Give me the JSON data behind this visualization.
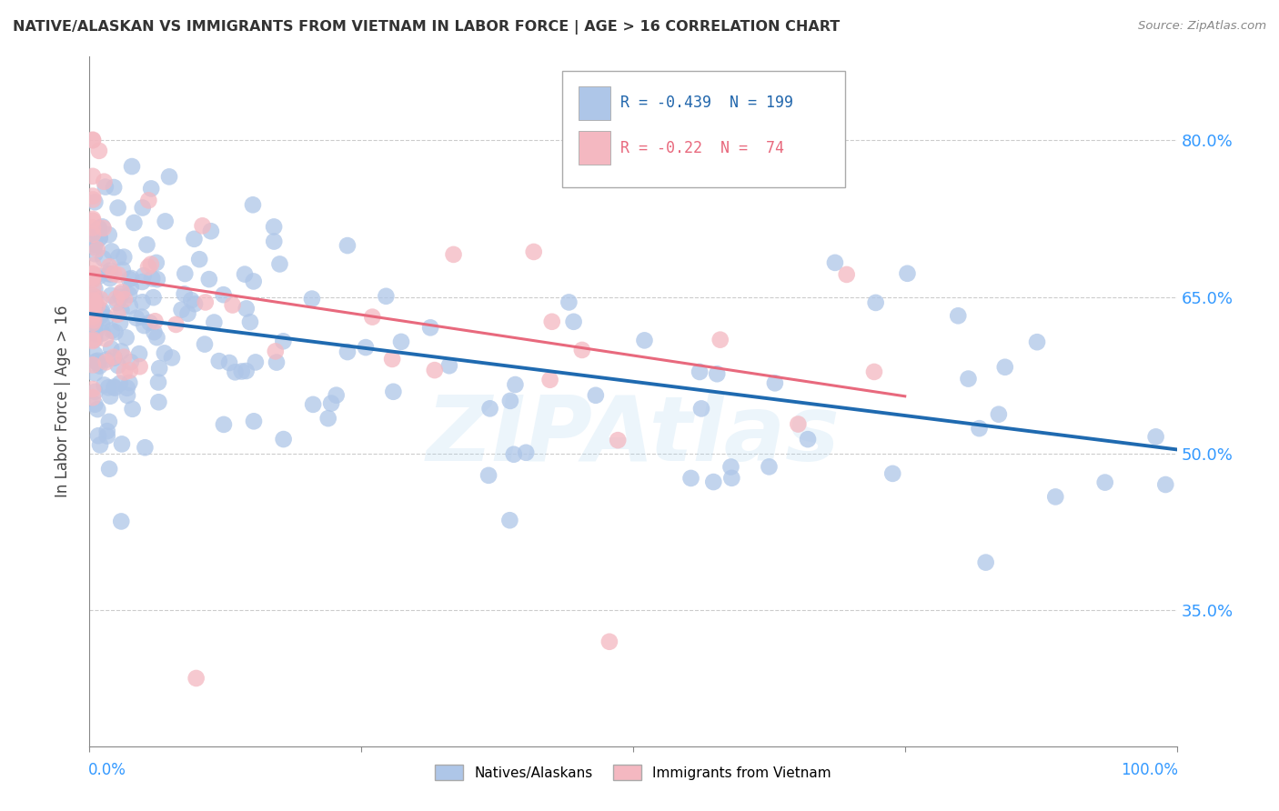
{
  "title": "NATIVE/ALASKAN VS IMMIGRANTS FROM VIETNAM IN LABOR FORCE | AGE > 16 CORRELATION CHART",
  "source": "Source: ZipAtlas.com",
  "ylabel": "In Labor Force | Age > 16",
  "xlim": [
    0.0,
    1.0
  ],
  "ylim": [
    0.22,
    0.88
  ],
  "yticks": [
    0.35,
    0.5,
    0.65,
    0.8
  ],
  "ytick_labels": [
    "35.0%",
    "50.0%",
    "65.0%",
    "80.0%"
  ],
  "blue_R": -0.439,
  "blue_N": 199,
  "pink_R": -0.22,
  "pink_N": 74,
  "blue_color": "#aec6e8",
  "pink_color": "#f4b8c1",
  "blue_line_color": "#1f6ab0",
  "pink_line_color": "#e8697d",
  "watermark": "ZIPAtlas",
  "legend_blue_label": "Natives/Alaskans",
  "legend_pink_label": "Immigrants from Vietnam",
  "blue_line_start_y": 0.634,
  "blue_line_end_y": 0.504,
  "pink_line_start_y": 0.672,
  "pink_line_end_y": 0.555,
  "pink_line_end_x": 0.75
}
